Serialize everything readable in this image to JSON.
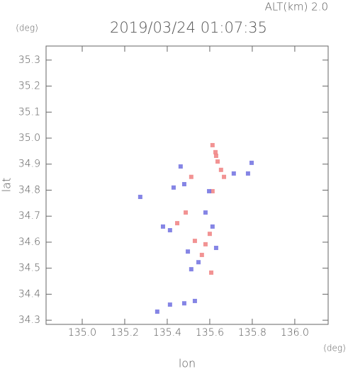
{
  "chart_data": {
    "type": "scatter",
    "title": "2019/03/24 01:07:35",
    "subtitle": "ALT(km) 2.0",
    "x_label": "lon",
    "y_label": "lat",
    "x_unit": "(deg)",
    "y_unit": "(deg)",
    "xlim": [
      134.83,
      136.157
    ],
    "ylim": [
      34.284,
      35.354
    ],
    "xticks": [
      {
        "value": 135,
        "label": "135.0"
      },
      135.2,
      135.4,
      135.6,
      135.8,
      {
        "value": 136,
        "label": "136.0"
      }
    ],
    "yticks": [
      34.3,
      34.4,
      34.5,
      34.6,
      34.7,
      34.8,
      34.9,
      {
        "value": 35,
        "label": "35.0"
      },
      35.1,
      35.2,
      35.3
    ],
    "series": [
      {
        "color": "#f08080",
        "x": [
          135.613,
          135.627,
          135.637,
          135.653,
          135.667,
          135.63,
          135.6,
          135.58,
          135.607,
          135.53,
          135.447,
          135.563,
          135.487,
          135.613,
          135.513
        ],
        "y": [
          34.973,
          34.946,
          34.91,
          34.878,
          34.851,
          34.932,
          34.632,
          34.592,
          34.483,
          34.605,
          34.673,
          34.551,
          34.714,
          34.796,
          34.851
        ]
      },
      {
        "color": "#7070e0",
        "x": [
          135.797,
          135.78,
          135.43,
          135.48,
          135.597,
          135.38,
          135.413,
          135.613,
          135.547,
          135.513,
          135.413,
          135.48,
          135.53,
          135.273,
          135.353,
          135.463,
          135.713,
          135.58,
          135.63,
          135.497
        ],
        "y": [
          34.905,
          34.864,
          34.81,
          34.823,
          34.796,
          34.66,
          34.646,
          34.66,
          34.523,
          34.496,
          34.36,
          34.365,
          34.374,
          34.774,
          34.333,
          34.891,
          34.864,
          34.714,
          34.578,
          34.564
        ]
      }
    ]
  }
}
